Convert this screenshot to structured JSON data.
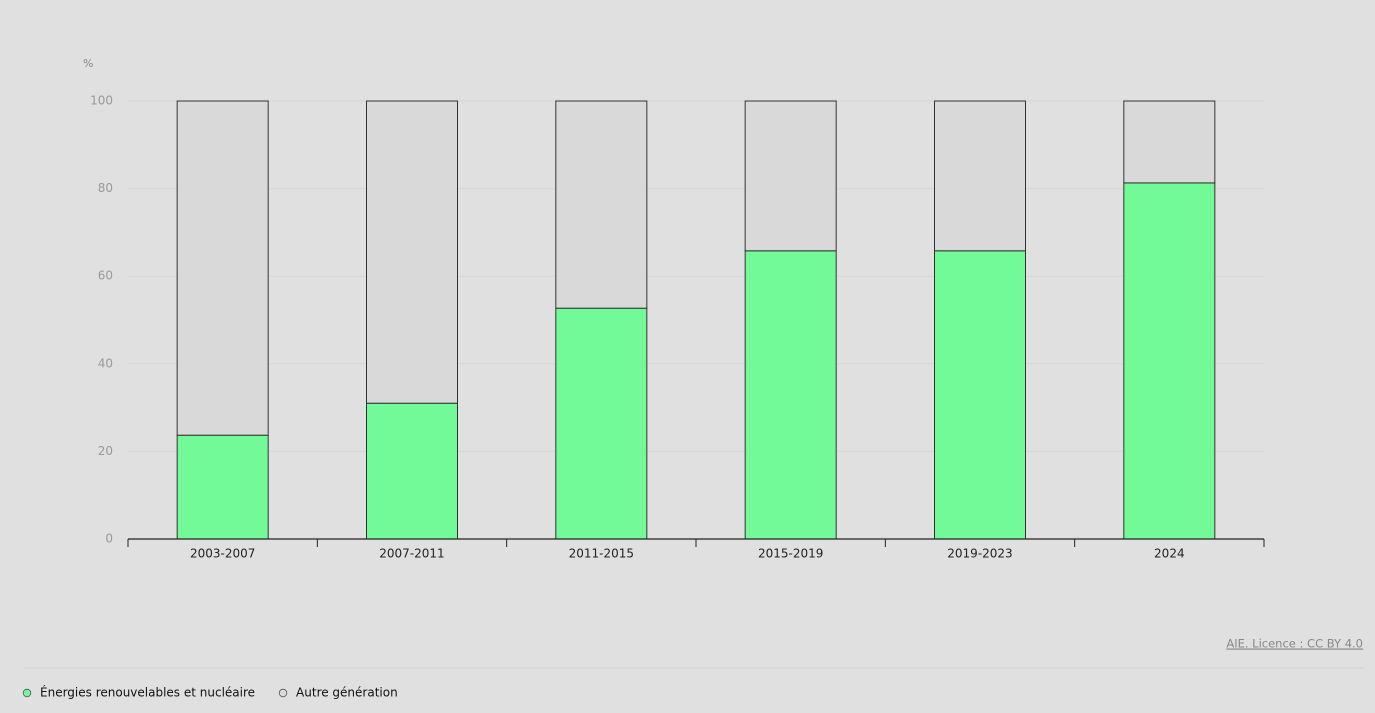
{
  "chart_data": {
    "type": "stacked_bar",
    "y_label": "%",
    "categories": [
      "2003-2007",
      "2007-2011",
      "2011-2015",
      "2015-2019",
      "2019-2023",
      "2024"
    ],
    "series": [
      {
        "name": "Énergies renouvelables et nucléaire",
        "color": "#72fa98",
        "values": [
          23.7,
          31.0,
          52.7,
          65.8,
          65.8,
          81.3
        ]
      },
      {
        "name": "Autre génération",
        "color": "#d9d9d9",
        "values": [
          76.3,
          69.0,
          47.3,
          34.2,
          34.2,
          18.7
        ]
      }
    ],
    "ylim": [
      0,
      100
    ],
    "yticks": [
      0,
      20,
      40,
      60,
      80,
      100
    ],
    "grid": true,
    "source": "AIE. Licence : CC BY 4.0"
  }
}
